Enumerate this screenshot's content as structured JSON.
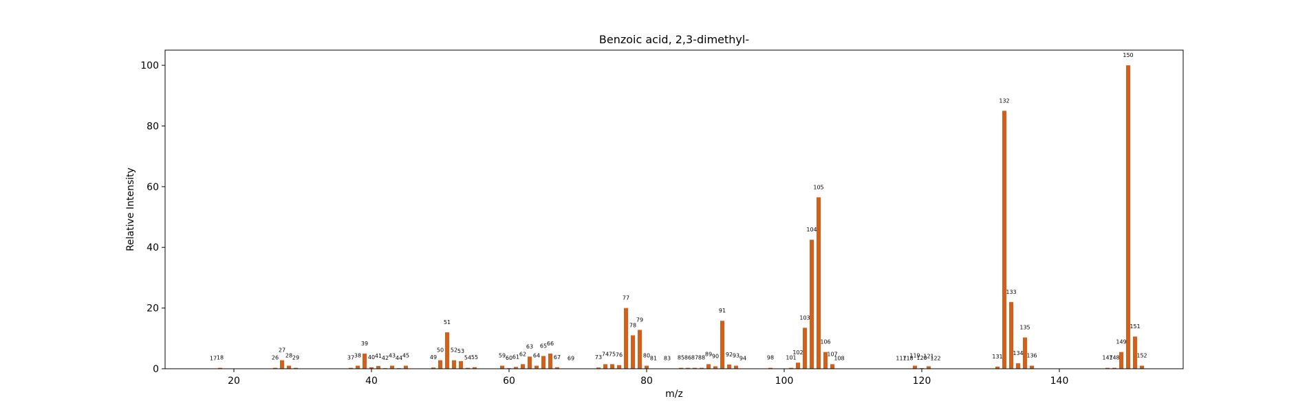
{
  "chart_data": {
    "type": "bar",
    "title": "Benzoic acid, 2,3-dimethyl-",
    "xlabel": "m/z",
    "ylabel": "Relative Intensity",
    "xlim": [
      10,
      158
    ],
    "ylim": [
      0,
      105
    ],
    "xticks": [
      20,
      40,
      60,
      80,
      100,
      120,
      140
    ],
    "yticks": [
      0,
      20,
      40,
      60,
      80,
      100
    ],
    "bar_color": "#d2601a",
    "grid": false,
    "peaks": [
      {
        "x": 17,
        "y": 0.1
      },
      {
        "x": 18,
        "y": 0.3
      },
      {
        "x": 26,
        "y": 0.3
      },
      {
        "x": 27,
        "y": 2.8
      },
      {
        "x": 28,
        "y": 1.0
      },
      {
        "x": 29,
        "y": 0.3
      },
      {
        "x": 37,
        "y": 0.3
      },
      {
        "x": 38,
        "y": 1.0
      },
      {
        "x": 39,
        "y": 5.0
      },
      {
        "x": 40,
        "y": 0.5
      },
      {
        "x": 41,
        "y": 0.9
      },
      {
        "x": 42,
        "y": 0.2
      },
      {
        "x": 43,
        "y": 1.0
      },
      {
        "x": 44,
        "y": 0.2
      },
      {
        "x": 45,
        "y": 1.0
      },
      {
        "x": 49,
        "y": 0.4
      },
      {
        "x": 50,
        "y": 2.8
      },
      {
        "x": 51,
        "y": 12.0
      },
      {
        "x": 52,
        "y": 2.8
      },
      {
        "x": 53,
        "y": 2.5
      },
      {
        "x": 54,
        "y": 0.3
      },
      {
        "x": 55,
        "y": 0.5
      },
      {
        "x": 59,
        "y": 1.0
      },
      {
        "x": 60,
        "y": 0.2
      },
      {
        "x": 61,
        "y": 0.6
      },
      {
        "x": 62,
        "y": 1.5
      },
      {
        "x": 63,
        "y": 4.0
      },
      {
        "x": 64,
        "y": 1.0
      },
      {
        "x": 65,
        "y": 4.2
      },
      {
        "x": 66,
        "y": 5.0
      },
      {
        "x": 67,
        "y": 0.5
      },
      {
        "x": 69,
        "y": 0.1
      },
      {
        "x": 73,
        "y": 0.4
      },
      {
        "x": 74,
        "y": 1.5
      },
      {
        "x": 75,
        "y": 1.5
      },
      {
        "x": 76,
        "y": 1.2
      },
      {
        "x": 77,
        "y": 20.0
      },
      {
        "x": 78,
        "y": 11.0
      },
      {
        "x": 79,
        "y": 12.8
      },
      {
        "x": 80,
        "y": 1.0
      },
      {
        "x": 81,
        "y": 0.1
      },
      {
        "x": 83,
        "y": 0.1
      },
      {
        "x": 85,
        "y": 0.3
      },
      {
        "x": 86,
        "y": 0.3
      },
      {
        "x": 87,
        "y": 0.3
      },
      {
        "x": 88,
        "y": 0.3
      },
      {
        "x": 89,
        "y": 1.5
      },
      {
        "x": 90,
        "y": 0.8
      },
      {
        "x": 91,
        "y": 15.8
      },
      {
        "x": 92,
        "y": 1.4
      },
      {
        "x": 93,
        "y": 1.0
      },
      {
        "x": 94,
        "y": 0.1
      },
      {
        "x": 98,
        "y": 0.3
      },
      {
        "x": 101,
        "y": 0.3
      },
      {
        "x": 102,
        "y": 2.0
      },
      {
        "x": 103,
        "y": 13.5
      },
      {
        "x": 104,
        "y": 42.5
      },
      {
        "x": 105,
        "y": 56.5
      },
      {
        "x": 106,
        "y": 5.5
      },
      {
        "x": 107,
        "y": 1.5
      },
      {
        "x": 108,
        "y": 0.1
      },
      {
        "x": 117,
        "y": 0.1
      },
      {
        "x": 118,
        "y": 0.1
      },
      {
        "x": 119,
        "y": 1.0
      },
      {
        "x": 120,
        "y": 0.2
      },
      {
        "x": 121,
        "y": 0.8
      },
      {
        "x": 122,
        "y": 0.1
      },
      {
        "x": 131,
        "y": 0.7
      },
      {
        "x": 132,
        "y": 85.0
      },
      {
        "x": 133,
        "y": 22.0
      },
      {
        "x": 134,
        "y": 1.8
      },
      {
        "x": 135,
        "y": 10.3
      },
      {
        "x": 136,
        "y": 1.0
      },
      {
        "x": 147,
        "y": 0.3
      },
      {
        "x": 148,
        "y": 0.3
      },
      {
        "x": 149,
        "y": 5.5
      },
      {
        "x": 150,
        "y": 100.0
      },
      {
        "x": 151,
        "y": 10.6
      },
      {
        "x": 152,
        "y": 1.0
      }
    ]
  }
}
